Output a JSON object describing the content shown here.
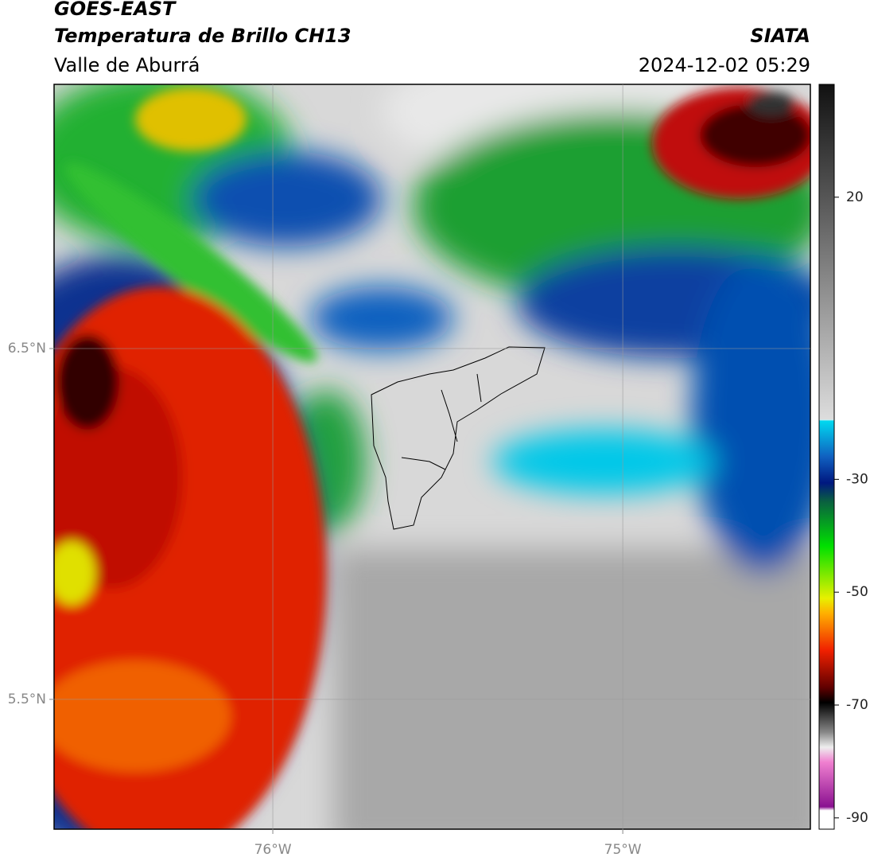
{
  "header": {
    "title": "GOES-EAST",
    "subtitle": "Temperatura de Brillo CH13",
    "region": "Valle de Aburrá",
    "source": "SIATA",
    "timestamp": "2024-12-02 05:29"
  },
  "map": {
    "xlim": [
      -76.625,
      -74.464
    ],
    "ylim": [
      5.13,
      7.253
    ],
    "xticks": [
      {
        "value": -76,
        "label": "76°W"
      },
      {
        "value": -75,
        "label": "75°W"
      }
    ],
    "yticks": [
      {
        "value": 5.5,
        "label": "5.5°N"
      },
      {
        "value": 6.5,
        "label": "6.5°N"
      }
    ]
  },
  "colorbar": {
    "lim": [
      -92,
      40
    ],
    "ticks": [
      20,
      -30,
      -50,
      -70,
      -90
    ]
  }
}
